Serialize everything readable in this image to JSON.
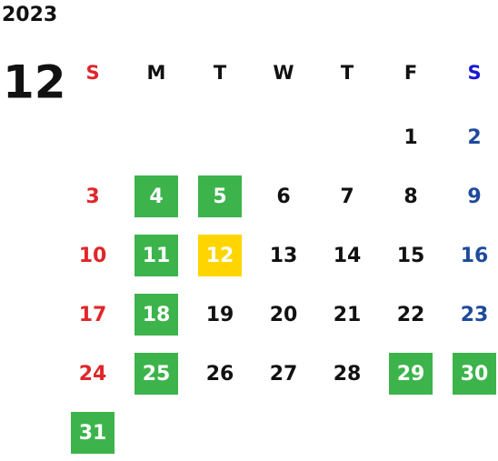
{
  "year": "2023",
  "month": "12",
  "sunday_color": "#e0262a",
  "saturday_color": "#1f4a9c",
  "weekday_color": "#111111",
  "highlight_text_color": "#ffffff",
  "weekdays": [
    {
      "label": "S",
      "color": "#e0262a"
    },
    {
      "label": "M",
      "color": "#111111"
    },
    {
      "label": "T",
      "color": "#111111"
    },
    {
      "label": "W",
      "color": "#111111"
    },
    {
      "label": "T",
      "color": "#111111"
    },
    {
      "label": "F",
      "color": "#111111"
    },
    {
      "label": "S",
      "color": "#1a1ad0"
    }
  ],
  "weeks": [
    [
      null,
      null,
      null,
      null,
      null,
      {
        "day": 1
      },
      {
        "day": 2
      }
    ],
    [
      {
        "day": 3
      },
      {
        "day": 4,
        "bg": "#3cb44b"
      },
      {
        "day": 5,
        "bg": "#3cb44b"
      },
      {
        "day": 6
      },
      {
        "day": 7
      },
      {
        "day": 8
      },
      {
        "day": 9
      }
    ],
    [
      {
        "day": 10
      },
      {
        "day": 11,
        "bg": "#3cb44b"
      },
      {
        "day": 12,
        "bg": "#ffd500"
      },
      {
        "day": 13
      },
      {
        "day": 14
      },
      {
        "day": 15
      },
      {
        "day": 16
      }
    ],
    [
      {
        "day": 17
      },
      {
        "day": 18,
        "bg": "#3cb44b"
      },
      {
        "day": 19
      },
      {
        "day": 20
      },
      {
        "day": 21
      },
      {
        "day": 22
      },
      {
        "day": 23
      }
    ],
    [
      {
        "day": 24
      },
      {
        "day": 25,
        "bg": "#3cb44b"
      },
      {
        "day": 26
      },
      {
        "day": 27
      },
      {
        "day": 28
      },
      {
        "day": 29,
        "bg": "#3cb44b"
      },
      {
        "day": 30,
        "bg": "#3cb44b"
      }
    ],
    [
      {
        "day": 31,
        "bg": "#3cb44b"
      },
      null,
      null,
      null,
      null,
      null,
      null
    ]
  ]
}
